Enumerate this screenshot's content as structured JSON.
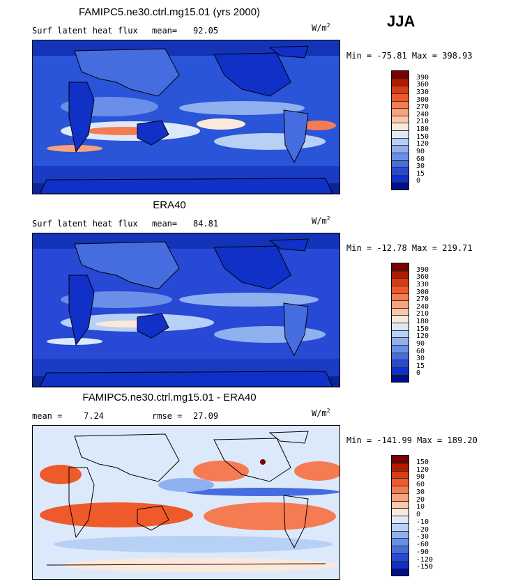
{
  "season": "JJA",
  "panels": [
    {
      "title": "FAMIPC5.ne30.ctrl.mg15.01 (yrs 2000)",
      "left_label": "Surf latent heat flux",
      "stat_label": "mean=",
      "stat_value": "92.05",
      "stat2_label": "",
      "stat2_value": "",
      "unit_base": "W/m",
      "unit_exp": "2",
      "minmax": "Min = -75.81 Max = 398.93",
      "colorbar": {
        "labels": [
          "390",
          "360",
          "330",
          "300",
          "270",
          "240",
          "210",
          "180",
          "150",
          "120",
          "90",
          "60",
          "30",
          "15",
          "0"
        ],
        "colors": [
          "#7a0000",
          "#b21a00",
          "#d83c10",
          "#ee5a2a",
          "#f57c52",
          "#f9a27c",
          "#fcc7a8",
          "#fde9da",
          "#dce9fb",
          "#b7d0f6",
          "#8fb1ef",
          "#6a8fe8",
          "#456ddf",
          "#2848d6",
          "#1030c8",
          "#00108a"
        ]
      }
    },
    {
      "title": "ERA40",
      "left_label": "Surf latent heat flux",
      "stat_label": "mean=",
      "stat_value": "84.81",
      "stat2_label": "",
      "stat2_value": "",
      "unit_base": "W/m",
      "unit_exp": "2",
      "minmax": "Min = -12.78 Max = 219.71",
      "colorbar": {
        "labels": [
          "390",
          "360",
          "330",
          "300",
          "270",
          "240",
          "210",
          "180",
          "150",
          "120",
          "90",
          "60",
          "30",
          "15",
          "0"
        ],
        "colors": [
          "#7a0000",
          "#b21a00",
          "#d83c10",
          "#ee5a2a",
          "#f57c52",
          "#f9a27c",
          "#fcc7a8",
          "#fde9da",
          "#dce9fb",
          "#b7d0f6",
          "#8fb1ef",
          "#6a8fe8",
          "#456ddf",
          "#2848d6",
          "#1030c8",
          "#00108a"
        ]
      }
    },
    {
      "title": "FAMIPC5.ne30.ctrl.mg15.01 - ERA40",
      "left_label": "",
      "stat_label": "mean =",
      "stat_value": "7.24",
      "stat2_label": "rmse =",
      "stat2_value": "27.09",
      "unit_base": "W/m",
      "unit_exp": "2",
      "minmax": "Min = -141.99 Max = 189.20",
      "colorbar": {
        "labels": [
          "150",
          "120",
          "90",
          "60",
          "30",
          "20",
          "10",
          "0",
          "-10",
          "-20",
          "-30",
          "-60",
          "-90",
          "-120",
          "-150"
        ],
        "colors": [
          "#7a0000",
          "#b21a00",
          "#d83c10",
          "#ee5a2a",
          "#f57c52",
          "#f9a27c",
          "#fcc7a8",
          "#fde9da",
          "#dce9fb",
          "#b7d0f6",
          "#8fb1ef",
          "#6a8fe8",
          "#456ddf",
          "#2848d6",
          "#1030c8",
          "#00108a"
        ]
      }
    }
  ],
  "chart_data": [
    {
      "type": "heatmap",
      "title": "FAMIPC5.ne30.ctrl.mg15.01 (yrs 2000)",
      "variable": "Surf latent heat flux",
      "units": "W/m2",
      "mean": 92.05,
      "min": -75.81,
      "max": 398.93,
      "levels": [
        0,
        15,
        30,
        60,
        90,
        120,
        150,
        180,
        210,
        240,
        270,
        300,
        330,
        360,
        390
      ]
    },
    {
      "type": "heatmap",
      "title": "ERA40",
      "variable": "Surf latent heat flux",
      "units": "W/m2",
      "mean": 84.81,
      "min": -12.78,
      "max": 219.71,
      "levels": [
        0,
        15,
        30,
        60,
        90,
        120,
        150,
        180,
        210,
        240,
        270,
        300,
        330,
        360,
        390
      ]
    },
    {
      "type": "heatmap",
      "title": "FAMIPC5.ne30.ctrl.mg15.01 - ERA40",
      "units": "W/m2",
      "mean": 7.24,
      "rmse": 27.09,
      "min": -141.99,
      "max": 189.2,
      "levels": [
        -150,
        -120,
        -90,
        -60,
        -30,
        -20,
        -10,
        0,
        10,
        20,
        30,
        60,
        90,
        120,
        150
      ]
    }
  ]
}
